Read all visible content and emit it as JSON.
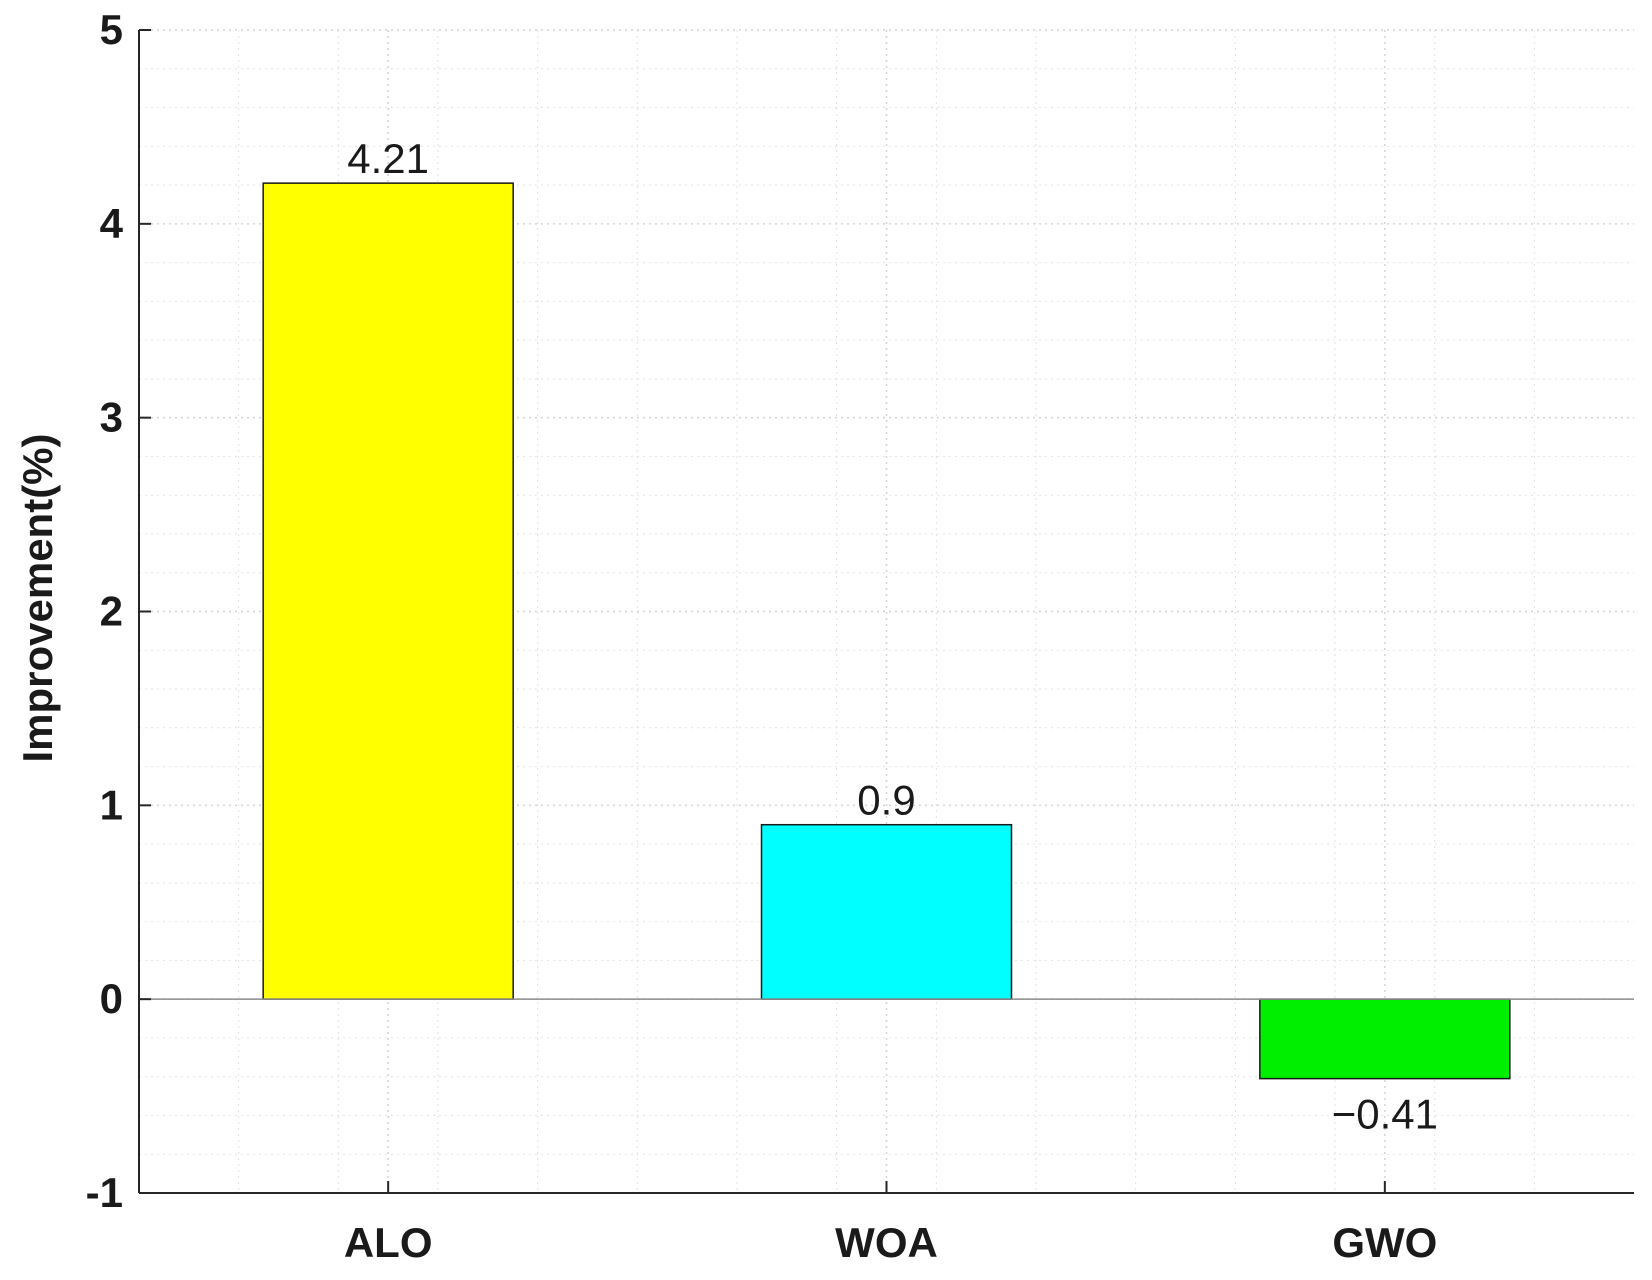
{
  "chart_data": {
    "type": "bar",
    "categories": [
      "ALO",
      "WOA",
      "GWO"
    ],
    "values": [
      4.21,
      0.9,
      -0.41
    ],
    "data_labels": [
      "4.21",
      "0.9",
      "−0.41"
    ],
    "bar_colors": [
      "#ffff00",
      "#00ffff",
      "#00ee00"
    ],
    "title": "",
    "xlabel": "",
    "ylabel": "Improvement(%)",
    "ylim": [
      -1,
      5
    ],
    "yticks": [
      -1,
      0,
      1,
      2,
      3,
      4,
      5
    ],
    "ytick_labels": [
      "-1",
      "0",
      "1",
      "2",
      "3",
      "4",
      "5"
    ],
    "grid": true,
    "minor_grid": true,
    "legend": "none"
  }
}
